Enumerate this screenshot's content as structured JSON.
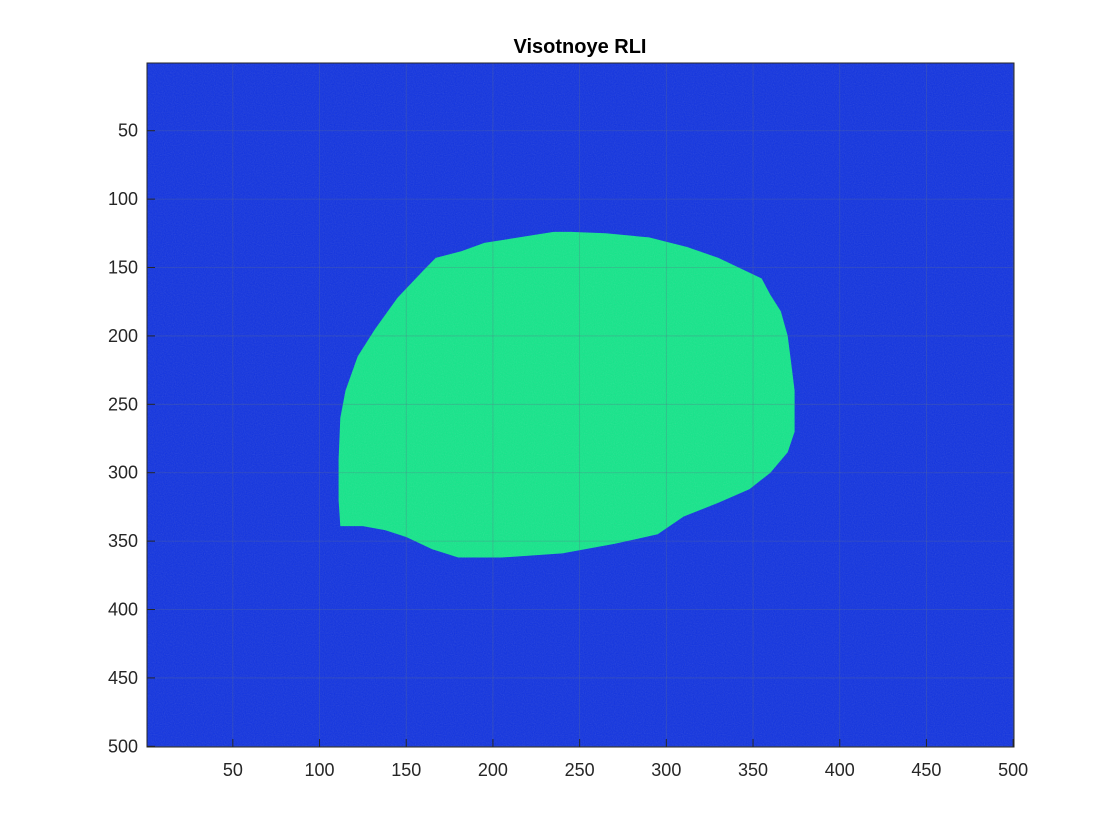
{
  "chart_data": {
    "type": "heatmap",
    "title": "Visotnoye RLI",
    "xlabel": "",
    "ylabel": "",
    "xlim": [
      0.5,
      500.5
    ],
    "ylim": [
      0.5,
      500.5
    ],
    "y_direction": "reversed",
    "xticks": [
      50,
      100,
      150,
      200,
      250,
      300,
      350,
      400,
      450,
      500
    ],
    "yticks": [
      50,
      100,
      150,
      200,
      250,
      300,
      350,
      400,
      450,
      500
    ],
    "grid": "on",
    "colors": {
      "background": "#1133e0",
      "region": "#13e68a",
      "grid": "#5f6f8a"
    },
    "region": {
      "label": "",
      "boundary": [
        [
          245,
          124
        ],
        [
          265,
          125
        ],
        [
          290,
          128
        ],
        [
          312,
          135
        ],
        [
          330,
          143
        ],
        [
          345,
          152
        ],
        [
          355,
          158
        ],
        [
          360,
          170
        ],
        [
          366,
          182
        ],
        [
          370,
          200
        ],
        [
          372,
          220
        ],
        [
          374,
          240
        ],
        [
          374,
          270
        ],
        [
          370,
          285
        ],
        [
          360,
          300
        ],
        [
          348,
          312
        ],
        [
          330,
          322
        ],
        [
          310,
          332
        ],
        [
          295,
          345
        ],
        [
          270,
          352
        ],
        [
          240,
          359
        ],
        [
          205,
          362
        ],
        [
          180,
          362
        ],
        [
          165,
          356
        ],
        [
          150,
          347
        ],
        [
          138,
          342
        ],
        [
          125,
          339
        ],
        [
          112,
          339
        ],
        [
          111,
          320
        ],
        [
          111,
          290
        ],
        [
          112,
          260
        ],
        [
          115,
          240
        ],
        [
          122,
          215
        ],
        [
          132,
          195
        ],
        [
          145,
          172
        ],
        [
          160,
          152
        ],
        [
          167,
          143
        ],
        [
          182,
          138
        ],
        [
          195,
          132
        ],
        [
          215,
          128
        ],
        [
          235,
          124
        ]
      ]
    }
  }
}
